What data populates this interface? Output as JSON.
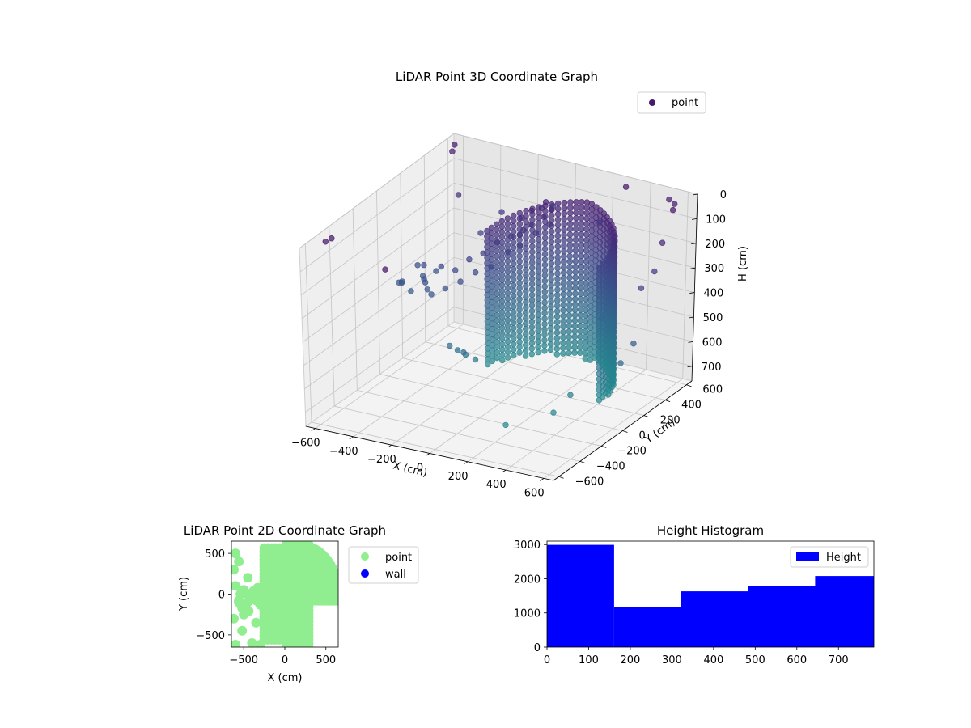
{
  "chart_data": [
    {
      "type": "scatter",
      "projection": "3d",
      "title": "LiDAR Point 3D Coordinate Graph",
      "xlabel": "X (cm)",
      "ylabel": "Y (cm)",
      "zlabel": "H (cm)",
      "xlim": [
        -650,
        650
      ],
      "ylim": [
        -650,
        650
      ],
      "zlim": [
        760,
        0
      ],
      "xticks": [
        -600,
        -400,
        -200,
        0,
        200,
        400,
        600
      ],
      "yticks": [
        -600,
        -400,
        -200,
        0,
        200,
        400,
        600
      ],
      "zticks": [
        0,
        100,
        200,
        300,
        400,
        500,
        600,
        700
      ],
      "xtick_labels": [
        "−600",
        "−400",
        "−200",
        "0",
        "200",
        "400",
        "600"
      ],
      "ytick_labels": [
        "−600",
        "−400",
        "−200",
        "0",
        "200",
        "400",
        "600"
      ],
      "ztick_labels": [
        "0",
        "100",
        "200",
        "300",
        "400",
        "500",
        "600",
        "700"
      ],
      "legend": {
        "entries": [
          "point"
        ],
        "placement": "upper right",
        "marker_color": "#481a6c"
      },
      "colormap": "viridis",
      "color_by": "height",
      "grid": true,
      "surface": {
        "description": "dense curved wall of points",
        "angle_start_deg": -80,
        "angle_end_deg": 95,
        "angle_step_deg": 5,
        "radius_cm": 470,
        "center": [
          150,
          230
        ],
        "h_top": [
          55,
          140
        ],
        "h_bottom": 700
      },
      "cluster_points": [
        [
          -520,
          130,
          330
        ],
        [
          -480,
          110,
          360
        ],
        [
          -455,
          80,
          300
        ],
        [
          -430,
          40,
          340
        ],
        [
          -400,
          20,
          370
        ],
        [
          -380,
          -30,
          320
        ],
        [
          -350,
          60,
          280
        ],
        [
          -330,
          -60,
          350
        ],
        [
          -300,
          100,
          300
        ],
        [
          -280,
          -20,
          330
        ],
        [
          -250,
          140,
          260
        ],
        [
          -230,
          30,
          310
        ],
        [
          -200,
          180,
          240
        ],
        [
          -180,
          80,
          280
        ],
        [
          -150,
          220,
          200
        ],
        [
          -120,
          120,
          260
        ],
        [
          -100,
          260,
          180
        ],
        [
          -80,
          200,
          220
        ],
        [
          -60,
          300,
          160
        ],
        [
          -40,
          240,
          200
        ],
        [
          -560,
          60,
          380
        ],
        [
          -540,
          0,
          360
        ],
        [
          -500,
          -40,
          340
        ],
        [
          -470,
          -10,
          380
        ],
        [
          -440,
          160,
          350
        ],
        [
          -200,
          -120,
          520
        ],
        [
          -170,
          -100,
          540
        ],
        [
          -140,
          -80,
          560
        ],
        [
          -120,
          -130,
          530
        ],
        [
          -100,
          -60,
          580
        ],
        [
          -80,
          320,
          120
        ],
        [
          -40,
          340,
          90
        ],
        [
          0,
          360,
          80
        ],
        [
          30,
          330,
          100
        ],
        [
          60,
          350,
          70
        ],
        [
          -20,
          300,
          130
        ],
        [
          20,
          280,
          150
        ],
        [
          -60,
          270,
          170
        ],
        [
          80,
          300,
          110
        ],
        [
          10,
          380,
          60
        ]
      ],
      "outlier_points": [
        [
          -620,
          -480,
          30
        ],
        [
          -600,
          -460,
          20
        ],
        [
          -200,
          -650,
          10
        ],
        [
          -640,
          640,
          40
        ],
        [
          -640,
          620,
          60
        ],
        [
          -500,
          450,
          150
        ],
        [
          300,
          600,
          20
        ],
        [
          600,
          520,
          30
        ],
        [
          560,
          600,
          40
        ],
        [
          500,
          650,
          50
        ],
        [
          620,
          400,
          120
        ],
        [
          640,
          300,
          200
        ],
        [
          600,
          250,
          260
        ],
        [
          450,
          150,
          380
        ],
        [
          400,
          -50,
          640
        ],
        [
          350,
          -120,
          700
        ],
        [
          200,
          -300,
          720
        ],
        [
          150,
          620,
          200
        ],
        [
          -100,
          620,
          180
        ],
        [
          -300,
          500,
          200
        ],
        [
          -350,
          400,
          260
        ],
        [
          650,
          100,
          430
        ],
        [
          640,
          0,
          480
        ]
      ]
    },
    {
      "type": "scatter",
      "title": "LiDAR Point 2D Coordinate Graph",
      "xlabel": "X (cm)",
      "ylabel": "Y (cm)",
      "xlim": [
        -650,
        650
      ],
      "ylim": [
        -650,
        650
      ],
      "xticks": [
        -500,
        0,
        500
      ],
      "yticks": [
        -500,
        0,
        500
      ],
      "xtick_labels": [
        "−500",
        "0",
        "500"
      ],
      "ytick_labels": [
        "−500",
        "0",
        "500"
      ],
      "series": [
        {
          "name": "point",
          "color": "#90ee90"
        },
        {
          "name": "wall",
          "color": "#0000ff"
        }
      ],
      "legend": {
        "placement": "outside right"
      }
    },
    {
      "type": "bar",
      "subtype": "histogram",
      "title": "Height Histogram",
      "xlim": [
        0,
        785
      ],
      "ylim": [
        0,
        3100
      ],
      "xticks": [
        0,
        100,
        200,
        300,
        400,
        500,
        600,
        700
      ],
      "yticks": [
        0,
        1000,
        2000,
        3000
      ],
      "bin_edges": [
        0,
        161,
        322,
        483,
        644,
        785
      ],
      "values": [
        2990,
        1160,
        1630,
        1780,
        2080
      ],
      "series": [
        {
          "name": "Height",
          "color": "#0000ff"
        }
      ],
      "legend": {
        "placement": "upper right"
      }
    }
  ]
}
